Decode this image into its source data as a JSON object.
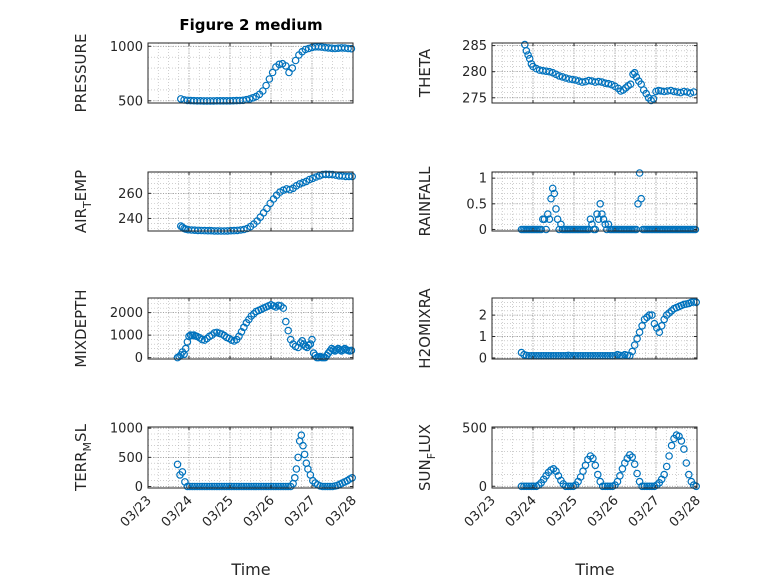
{
  "figure": {
    "title": "Figure 2 medium",
    "xlabel": "Time"
  },
  "colors": {
    "marker": "#0072BD",
    "axis": "#262626",
    "grid": "#b0b0b0"
  },
  "chart_data": [
    {
      "type": "scatter",
      "name": "pressure",
      "ylabel": "PRESSURE",
      "ylabel_base": "PRESSURE",
      "ylabel_sub": "",
      "ylabel_tail": "",
      "xlim": [
        0,
        5
      ],
      "ylim": [
        480,
        1030
      ],
      "yticks": [
        500,
        1000
      ],
      "ytick_labels": [
        "500",
        "1000"
      ],
      "x": [
        0.8,
        0.88,
        0.96,
        1.04,
        1.12,
        1.2,
        1.28,
        1.36,
        1.44,
        1.52,
        1.6,
        1.68,
        1.76,
        1.84,
        1.92,
        2.0,
        2.08,
        2.16,
        2.24,
        2.32,
        2.4,
        2.48,
        2.56,
        2.64,
        2.72,
        2.8,
        2.88,
        2.96,
        3.04,
        3.12,
        3.2,
        3.28,
        3.36,
        3.44,
        3.52,
        3.6,
        3.68,
        3.76,
        3.84,
        3.92,
        4.0,
        4.08,
        4.16,
        4.24,
        4.32,
        4.4,
        4.48,
        4.56,
        4.64,
        4.72,
        4.8,
        4.88,
        4.96
      ],
      "y": [
        518,
        508,
        504,
        502,
        501,
        500,
        500,
        499,
        499,
        499,
        499,
        500,
        500,
        500,
        500,
        500,
        501,
        502,
        503,
        505,
        510,
        518,
        528,
        540,
        560,
        590,
        640,
        700,
        760,
        810,
        835,
        840,
        820,
        760,
        800,
        870,
        920,
        950,
        970,
        980,
        990,
        995,
        995,
        992,
        988,
        985,
        982,
        980,
        982,
        985,
        983,
        980,
        978
      ]
    },
    {
      "type": "scatter",
      "name": "theta",
      "ylabel": "THETA",
      "ylabel_base": "THETA",
      "ylabel_sub": "",
      "ylabel_tail": "",
      "xlim": [
        0,
        5
      ],
      "ylim": [
        274,
        285.5
      ],
      "yticks": [
        275,
        280,
        285
      ],
      "ytick_labels": [
        "275",
        "280",
        "285"
      ],
      "x": [
        0.8,
        0.84,
        0.88,
        0.92,
        0.96,
        1.0,
        1.08,
        1.16,
        1.24,
        1.32,
        1.4,
        1.48,
        1.56,
        1.64,
        1.72,
        1.8,
        1.88,
        1.96,
        2.04,
        2.12,
        2.2,
        2.28,
        2.36,
        2.44,
        2.52,
        2.6,
        2.68,
        2.76,
        2.84,
        2.92,
        3.0,
        3.08,
        3.14,
        3.2,
        3.26,
        3.32,
        3.38,
        3.44,
        3.48,
        3.52,
        3.58,
        3.64,
        3.7,
        3.76,
        3.82,
        3.88,
        3.94,
        4.0,
        4.06,
        4.12,
        4.2,
        4.28,
        4.36,
        4.44,
        4.52,
        4.6,
        4.68,
        4.76,
        4.84,
        4.92
      ],
      "y": [
        285.2,
        284,
        283.2,
        282.5,
        281.5,
        281,
        280.6,
        280.3,
        280.2,
        280.1,
        280,
        279.8,
        279.5,
        279.2,
        279,
        278.8,
        278.6,
        278.5,
        278.4,
        278.2,
        278,
        278.1,
        278.3,
        278.2,
        278,
        278.1,
        278,
        277.8,
        277.7,
        277.5,
        277.2,
        276.8,
        276.3,
        276.5,
        276.9,
        277.3,
        277.6,
        279.5,
        279.8,
        279,
        278.2,
        277.6,
        276.5,
        275.8,
        275,
        274.5,
        274.8,
        276.2,
        276.4,
        276.3,
        276.2,
        276.3,
        276.4,
        276.2,
        276.1,
        276,
        276.2,
        276.1,
        275.9,
        276.1
      ]
    },
    {
      "type": "scatter",
      "name": "air_temp",
      "ylabel": "AIR_TEMP",
      "ylabel_base": "AIR",
      "ylabel_sub": "T",
      "ylabel_tail": "EMP",
      "xlim": [
        0,
        5
      ],
      "ylim": [
        230,
        277
      ],
      "yticks": [
        240,
        260
      ],
      "ytick_labels": [
        "240",
        "260"
      ],
      "x": [
        0.8,
        0.84,
        0.88,
        0.92,
        0.98,
        1.06,
        1.14,
        1.22,
        1.3,
        1.38,
        1.46,
        1.54,
        1.62,
        1.7,
        1.78,
        1.86,
        1.94,
        2.02,
        2.1,
        2.18,
        2.26,
        2.34,
        2.42,
        2.5,
        2.58,
        2.66,
        2.74,
        2.82,
        2.9,
        2.98,
        3.06,
        3.14,
        3.22,
        3.3,
        3.38,
        3.46,
        3.54,
        3.62,
        3.7,
        3.78,
        3.86,
        3.94,
        4.02,
        4.1,
        4.18,
        4.26,
        4.34,
        4.42,
        4.5,
        4.58,
        4.66,
        4.74,
        4.82,
        4.9,
        4.98
      ],
      "y": [
        234,
        233,
        232,
        231.5,
        231,
        230.8,
        230.6,
        230.5,
        230.4,
        230.3,
        230.2,
        230.2,
        230.1,
        230.1,
        230,
        230,
        230.1,
        230.2,
        230.3,
        230.5,
        230.8,
        231.2,
        232,
        233.5,
        235.5,
        238,
        241,
        244.5,
        248,
        252,
        255.5,
        258.5,
        261,
        262.5,
        263.5,
        263,
        264,
        266,
        267.5,
        268.5,
        269.5,
        271,
        272,
        273,
        274,
        275,
        275.2,
        275.1,
        275,
        274.5,
        274,
        273.8,
        273.5,
        273.5,
        273.5
      ]
    },
    {
      "type": "scatter",
      "name": "rainfall",
      "ylabel": "RAINFALL",
      "ylabel_base": "RAINFALL",
      "ylabel_sub": "",
      "ylabel_tail": "",
      "xlim": [
        0,
        5
      ],
      "ylim": [
        -0.03,
        1.12
      ],
      "yticks": [
        0,
        0.5,
        1
      ],
      "ytick_labels": [
        "0",
        "0.5",
        "1"
      ],
      "x": [
        0.72,
        0.76,
        0.8,
        0.84,
        0.88,
        0.92,
        0.96,
        1.0,
        1.04,
        1.08,
        1.12,
        1.16,
        1.2,
        1.24,
        1.28,
        1.32,
        1.36,
        1.4,
        1.44,
        1.48,
        1.52,
        1.56,
        1.6,
        1.64,
        1.68,
        1.72,
        1.76,
        1.8,
        1.84,
        1.88,
        1.92,
        1.96,
        2.0,
        2.04,
        2.08,
        2.12,
        2.16,
        2.2,
        2.24,
        2.28,
        2.32,
        2.36,
        2.4,
        2.44,
        2.48,
        2.52,
        2.56,
        2.6,
        2.64,
        2.68,
        2.72,
        2.76,
        2.8,
        2.84,
        2.88,
        2.92,
        2.96,
        3.0,
        3.04,
        3.08,
        3.12,
        3.16,
        3.2,
        3.24,
        3.28,
        3.32,
        3.36,
        3.4,
        3.44,
        3.48,
        3.52,
        3.56,
        3.6,
        3.64,
        3.68,
        3.72,
        3.76,
        3.8,
        3.84,
        3.88,
        3.92,
        3.96,
        4.0,
        4.04,
        4.08,
        4.12,
        4.16,
        4.2,
        4.24,
        4.28,
        4.32,
        4.36,
        4.4,
        4.44,
        4.48,
        4.52,
        4.56,
        4.6,
        4.64,
        4.68,
        4.72,
        4.76,
        4.8,
        4.84,
        4.88,
        4.92,
        4.96
      ],
      "y": [
        0,
        0,
        0,
        0,
        0,
        0,
        0,
        0,
        0,
        0,
        0,
        0,
        0,
        0.2,
        0.2,
        0,
        0.3,
        0.2,
        0.6,
        0.8,
        0.7,
        0.4,
        0.2,
        0,
        0.1,
        0,
        0,
        0,
        0,
        0,
        0,
        0,
        0,
        0,
        0,
        0,
        0,
        0,
        0,
        0,
        0,
        0,
        0.2,
        0.1,
        0,
        0,
        0.3,
        0.2,
        0.5,
        0.3,
        0.2,
        0.1,
        0,
        0.1,
        0,
        0,
        0,
        0,
        0,
        0,
        0,
        0,
        0,
        0,
        0,
        0,
        0,
        0,
        0,
        0,
        0,
        0.5,
        1.1,
        0.6,
        0,
        0,
        0,
        0,
        0,
        0,
        0,
        0,
        0,
        0,
        0,
        0,
        0,
        0,
        0,
        0,
        0,
        0,
        0,
        0,
        0,
        0,
        0,
        0,
        0,
        0,
        0,
        0,
        0,
        0,
        0,
        0,
        0
      ]
    },
    {
      "type": "scatter",
      "name": "mixdepth",
      "ylabel": "MIXDEPTH",
      "ylabel_base": "MIXDEPTH",
      "ylabel_sub": "",
      "ylabel_tail": "",
      "xlim": [
        0,
        5
      ],
      "ylim": [
        -60,
        2650
      ],
      "yticks": [
        0,
        1000,
        2000
      ],
      "ytick_labels": [
        "0",
        "1000",
        "2000"
      ],
      "x": [
        0.72,
        0.76,
        0.8,
        0.84,
        0.88,
        0.92,
        0.96,
        1.0,
        1.04,
        1.08,
        1.12,
        1.16,
        1.2,
        1.26,
        1.32,
        1.38,
        1.44,
        1.5,
        1.56,
        1.62,
        1.68,
        1.74,
        1.8,
        1.86,
        1.92,
        1.98,
        2.04,
        2.1,
        2.16,
        2.22,
        2.28,
        2.34,
        2.4,
        2.46,
        2.52,
        2.58,
        2.64,
        2.7,
        2.76,
        2.82,
        2.88,
        2.94,
        3.0,
        3.06,
        3.12,
        3.18,
        3.24,
        3.3,
        3.36,
        3.42,
        3.48,
        3.54,
        3.6,
        3.66,
        3.72,
        3.76,
        3.8,
        3.84,
        3.88,
        3.92,
        3.96,
        4.0,
        4.04,
        4.08,
        4.12,
        4.16,
        4.2,
        4.24,
        4.28,
        4.32,
        4.36,
        4.4,
        4.44,
        4.48,
        4.52,
        4.56,
        4.6,
        4.64,
        4.68,
        4.72,
        4.76,
        4.8,
        4.84,
        4.88,
        4.92,
        4.96
      ],
      "y": [
        0,
        50,
        120,
        250,
        150,
        400,
        700,
        950,
        1000,
        980,
        1000,
        960,
        940,
        880,
        800,
        780,
        850,
        950,
        1000,
        1100,
        1120,
        1080,
        1050,
        980,
        900,
        850,
        780,
        740,
        800,
        950,
        1150,
        1350,
        1550,
        1700,
        1850,
        1950,
        2050,
        2100,
        2150,
        2200,
        2250,
        2300,
        2350,
        2300,
        2250,
        2320,
        2300,
        2200,
        1600,
        1200,
        800,
        600,
        500,
        450,
        650,
        750,
        600,
        500,
        450,
        550,
        600,
        800,
        200,
        100,
        0,
        0,
        50,
        0,
        0,
        0,
        100,
        200,
        300,
        400,
        350,
        300,
        350,
        400,
        350,
        300,
        350,
        400,
        350,
        320,
        300,
        320
      ]
    },
    {
      "type": "scatter",
      "name": "h2omixra",
      "ylabel": "H2OMIXRA",
      "ylabel_base": "H2OMIXRA",
      "ylabel_sub": "",
      "ylabel_tail": "",
      "xlim": [
        0,
        5
      ],
      "ylim": [
        -0.05,
        2.8
      ],
      "yticks": [
        0,
        1,
        2
      ],
      "ytick_labels": [
        "0",
        "1",
        "2"
      ],
      "x": [
        0.72,
        0.78,
        0.84,
        0.9,
        0.96,
        1.02,
        1.08,
        1.14,
        1.2,
        1.26,
        1.32,
        1.38,
        1.44,
        1.5,
        1.56,
        1.62,
        1.68,
        1.74,
        1.8,
        1.86,
        1.92,
        1.98,
        2.04,
        2.1,
        2.16,
        2.22,
        2.28,
        2.34,
        2.4,
        2.46,
        2.52,
        2.58,
        2.64,
        2.7,
        2.76,
        2.82,
        2.88,
        2.94,
        3.0,
        3.06,
        3.12,
        3.18,
        3.24,
        3.3,
        3.36,
        3.42,
        3.48,
        3.54,
        3.6,
        3.66,
        3.72,
        3.78,
        3.84,
        3.9,
        3.96,
        4.02,
        4.08,
        4.14,
        4.2,
        4.26,
        4.32,
        4.38,
        4.44,
        4.5,
        4.56,
        4.62,
        4.68,
        4.74,
        4.8,
        4.86,
        4.92,
        4.98
      ],
      "y": [
        0.25,
        0.15,
        0.12,
        0.1,
        0.1,
        0.1,
        0.1,
        0.1,
        0.1,
        0.1,
        0.1,
        0.1,
        0.1,
        0.1,
        0.1,
        0.1,
        0.1,
        0.1,
        0.1,
        0.12,
        0.1,
        0.1,
        0.1,
        0.1,
        0.1,
        0.1,
        0.1,
        0.1,
        0.1,
        0.1,
        0.1,
        0.1,
        0.1,
        0.1,
        0.1,
        0.1,
        0.1,
        0.1,
        0.1,
        0.15,
        0.12,
        0.1,
        0.15,
        0.12,
        0.1,
        0.3,
        0.6,
        0.9,
        1.2,
        1.5,
        1.8,
        1.9,
        2.0,
        2.0,
        1.6,
        1.4,
        1.2,
        1.5,
        1.8,
        2.0,
        2.1,
        2.2,
        2.3,
        2.35,
        2.4,
        2.45,
        2.5,
        2.52,
        2.55,
        2.6,
        2.62,
        2.6
      ]
    },
    {
      "type": "scatter",
      "name": "terr_msl",
      "ylabel": "TERR_MSL",
      "ylabel_base": "TERR",
      "ylabel_sub": "M",
      "ylabel_tail": "SL",
      "xlim": [
        0,
        5
      ],
      "ylim": [
        -25,
        1020
      ],
      "yticks": [
        0,
        500,
        1000
      ],
      "ytick_labels": [
        "0",
        "500",
        "1000"
      ],
      "x": [
        0.72,
        0.78,
        0.84,
        0.9,
        0.96,
        1.02,
        1.08,
        1.14,
        1.2,
        1.26,
        1.32,
        1.38,
        1.44,
        1.5,
        1.56,
        1.62,
        1.68,
        1.74,
        1.8,
        1.86,
        1.92,
        1.98,
        2.04,
        2.1,
        2.16,
        2.22,
        2.28,
        2.34,
        2.4,
        2.46,
        2.52,
        2.58,
        2.64,
        2.7,
        2.76,
        2.82,
        2.88,
        2.94,
        3.0,
        3.06,
        3.12,
        3.18,
        3.24,
        3.3,
        3.36,
        3.42,
        3.48,
        3.54,
        3.58,
        3.62,
        3.66,
        3.7,
        3.74,
        3.78,
        3.82,
        3.86,
        3.9,
        3.96,
        4.02,
        4.08,
        4.14,
        4.2,
        4.26,
        4.32,
        4.38,
        4.44,
        4.5,
        4.56,
        4.62,
        4.68,
        4.74,
        4.8,
        4.86,
        4.92,
        4.98
      ],
      "y": [
        380,
        200,
        250,
        80,
        0,
        0,
        0,
        0,
        0,
        0,
        0,
        0,
        0,
        0,
        0,
        0,
        0,
        0,
        0,
        0,
        0,
        0,
        0,
        0,
        0,
        0,
        0,
        0,
        0,
        0,
        0,
        0,
        0,
        0,
        0,
        0,
        0,
        0,
        0,
        0,
        0,
        0,
        0,
        0,
        0,
        0,
        0,
        50,
        150,
        300,
        500,
        780,
        880,
        700,
        550,
        400,
        300,
        200,
        100,
        60,
        30,
        10,
        0,
        0,
        0,
        0,
        0,
        10,
        20,
        40,
        60,
        80,
        100,
        130,
        150
      ]
    },
    {
      "type": "scatter",
      "name": "sun_flux",
      "ylabel": "SUN_FLUX",
      "ylabel_base": "SUN",
      "ylabel_sub": "F",
      "ylabel_tail": "LUX",
      "xlim": [
        0,
        5
      ],
      "ylim": [
        -15,
        510
      ],
      "yticks": [
        0,
        500
      ],
      "ytick_labels": [
        "0",
        "500"
      ],
      "x": [
        0.72,
        0.78,
        0.84,
        0.9,
        0.96,
        1.02,
        1.08,
        1.14,
        1.2,
        1.26,
        1.32,
        1.38,
        1.44,
        1.5,
        1.56,
        1.62,
        1.68,
        1.74,
        1.8,
        1.86,
        1.92,
        1.98,
        2.04,
        2.1,
        2.16,
        2.22,
        2.28,
        2.34,
        2.4,
        2.46,
        2.52,
        2.58,
        2.64,
        2.7,
        2.76,
        2.82,
        2.88,
        2.94,
        3.0,
        3.06,
        3.12,
        3.18,
        3.24,
        3.3,
        3.36,
        3.42,
        3.48,
        3.54,
        3.6,
        3.66,
        3.72,
        3.78,
        3.84,
        3.9,
        3.96,
        4.02,
        4.08,
        4.14,
        4.2,
        4.26,
        4.32,
        4.38,
        4.44,
        4.5,
        4.56,
        4.62,
        4.68,
        4.74,
        4.8,
        4.86,
        4.92,
        4.98
      ],
      "y": [
        0,
        0,
        0,
        0,
        0,
        0,
        0,
        10,
        30,
        60,
        90,
        120,
        140,
        150,
        130,
        90,
        50,
        20,
        0,
        0,
        0,
        0,
        10,
        40,
        80,
        130,
        180,
        230,
        260,
        240,
        180,
        100,
        40,
        0,
        0,
        0,
        0,
        0,
        10,
        40,
        90,
        150,
        200,
        240,
        270,
        250,
        190,
        110,
        40,
        0,
        0,
        0,
        0,
        0,
        0,
        10,
        30,
        60,
        100,
        170,
        260,
        350,
        410,
        440,
        430,
        390,
        320,
        200,
        100,
        40,
        10,
        0
      ]
    }
  ],
  "xticks": [
    0,
    1,
    2,
    3,
    4,
    5
  ],
  "xtick_labels": [
    "03/23",
    "03/24",
    "03/25",
    "03/26",
    "03/27",
    "03/28"
  ]
}
